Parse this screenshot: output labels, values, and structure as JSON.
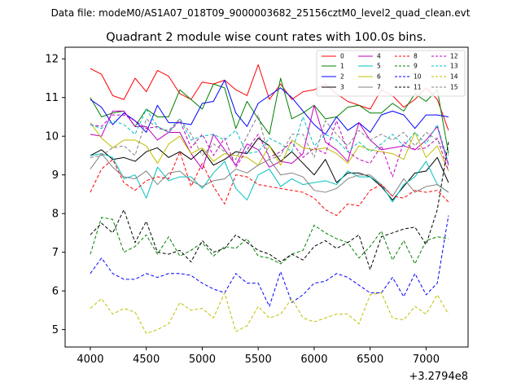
{
  "figure": {
    "suptitle": "Data file: modeM0/AS1A07_018T09_9000003682_25156cztM0_level2_quad_clean.evt",
    "x_offset_label": "+3.2794e8"
  },
  "chart_data": {
    "type": "line",
    "title": "Quadrant 2 module wise count rates with 100.0s bins.",
    "xlabel": "",
    "ylabel": "",
    "xlim": [
      3775,
      7375
    ],
    "ylim": [
      4.55,
      12.3
    ],
    "xticks": [
      4000,
      4500,
      5000,
      5500,
      6000,
      6500,
      7000
    ],
    "xtick_labels": [
      "4000",
      "4500",
      "5000",
      "5500",
      "6000",
      "6500",
      "7000"
    ],
    "yticks": [
      5,
      6,
      7,
      8,
      9,
      10,
      11,
      12
    ],
    "ytick_labels": [
      "5",
      "6",
      "7",
      "8",
      "9",
      "10",
      "11",
      "12"
    ],
    "legend_position": "top-right",
    "x": [
      4000,
      4100,
      4200,
      4300,
      4400,
      4500,
      4600,
      4700,
      4800,
      4900,
      5000,
      5100,
      5200,
      5300,
      5400,
      5500,
      5600,
      5700,
      5800,
      5900,
      6000,
      6100,
      6200,
      6300,
      6400,
      6500,
      6600,
      6700,
      6800,
      6900,
      7000,
      7100,
      7200
    ],
    "series": [
      {
        "name": "0",
        "color": "#ff0000",
        "style": "solid",
        "values": [
          11.75,
          11.6,
          11.05,
          10.95,
          11.5,
          11.15,
          11.7,
          11.55,
          11.1,
          10.95,
          11.4,
          11.35,
          11.45,
          11.2,
          11.05,
          11.85,
          10.95,
          11.35,
          10.95,
          11.15,
          11.2,
          11.35,
          11.1,
          10.9,
          10.8,
          10.7,
          11.2,
          11.05,
          10.75,
          10.95,
          11.25,
          10.95,
          10.15
        ]
      },
      {
        "name": "1",
        "color": "#008000",
        "style": "solid",
        "values": [
          11.0,
          10.5,
          10.6,
          10.65,
          10.25,
          10.7,
          10.5,
          10.5,
          11.2,
          10.95,
          10.7,
          11.35,
          11.25,
          10.2,
          10.9,
          10.45,
          10.05,
          11.5,
          10.45,
          10.6,
          10.8,
          10.45,
          10.5,
          10.75,
          10.8,
          10.6,
          10.6,
          10.85,
          10.65,
          11.1,
          10.9,
          11.2,
          9.55
        ]
      },
      {
        "name": "2",
        "color": "#0000ff",
        "style": "solid",
        "values": [
          10.95,
          10.75,
          10.3,
          10.6,
          10.4,
          10.1,
          10.8,
          10.35,
          10.35,
          10.3,
          10.85,
          10.9,
          11.45,
          10.6,
          10.25,
          10.85,
          11.05,
          11.25,
          11.0,
          10.65,
          10.3,
          10.05,
          10.5,
          10.15,
          10.35,
          10.1,
          10.55,
          10.65,
          10.55,
          10.2,
          10.55,
          10.55,
          10.5
        ]
      },
      {
        "name": "3",
        "color": "#000000",
        "style": "solid",
        "values": [
          9.5,
          9.65,
          9.4,
          9.45,
          9.35,
          9.6,
          9.7,
          9.45,
          9.6,
          9.4,
          9.65,
          9.25,
          9.4,
          9.6,
          9.55,
          9.95,
          9.75,
          9.35,
          9.6,
          9.3,
          9.0,
          9.4,
          8.8,
          9.05,
          9.05,
          8.95,
          8.7,
          8.35,
          8.7,
          9.05,
          9.1,
          9.45,
          8.8
        ]
      },
      {
        "name": "4",
        "color": "#bf00bf",
        "style": "solid",
        "values": [
          10.05,
          10.0,
          10.65,
          10.65,
          10.25,
          10.25,
          9.9,
          10.1,
          10.1,
          9.55,
          9.15,
          10.05,
          9.65,
          9.25,
          9.8,
          9.65,
          9.2,
          9.35,
          9.3,
          9.55,
          10.8,
          9.85,
          9.65,
          9.35,
          10.35,
          9.9,
          9.65,
          9.7,
          9.75,
          9.65,
          9.9,
          10.25,
          9.25
        ]
      },
      {
        "name": "5",
        "color": "#00bfbf",
        "style": "solid",
        "values": [
          9.5,
          9.55,
          9.45,
          8.9,
          9.0,
          8.4,
          9.2,
          8.85,
          8.95,
          8.95,
          8.65,
          9.05,
          9.35,
          8.65,
          8.35,
          9.0,
          9.15,
          8.7,
          8.9,
          8.75,
          8.8,
          8.85,
          8.75,
          9.1,
          8.95,
          8.95,
          8.75,
          8.3,
          8.75,
          8.95,
          9.35,
          8.75,
          8.55
        ]
      },
      {
        "name": "6",
        "color": "#bfbf00",
        "style": "solid",
        "values": [
          10.35,
          9.95,
          9.7,
          9.9,
          9.9,
          9.75,
          9.3,
          9.8,
          10.0,
          9.55,
          9.7,
          9.35,
          9.55,
          9.5,
          9.45,
          9.25,
          9.75,
          9.25,
          9.9,
          9.7,
          9.65,
          9.7,
          9.55,
          9.3,
          9.75,
          9.65,
          9.6,
          9.55,
          9.4,
          10.1,
          9.45,
          9.75,
          9.1
        ]
      },
      {
        "name": "7",
        "color": "#808080",
        "style": "solid",
        "values": [
          9.15,
          9.55,
          9.2,
          8.95,
          8.9,
          9.1,
          8.75,
          9.05,
          9.1,
          8.85,
          8.7,
          8.85,
          8.9,
          9.15,
          9.05,
          9.25,
          9.4,
          9.0,
          9.05,
          8.95,
          8.6,
          8.55,
          8.65,
          8.9,
          9.0,
          9.0,
          8.75,
          8.45,
          8.9,
          8.55,
          8.7,
          8.75,
          8.55
        ]
      },
      {
        "name": "8",
        "color": "#ff0000",
        "style": "dashed",
        "values": [
          8.55,
          9.15,
          9.4,
          8.8,
          8.6,
          8.85,
          8.95,
          8.9,
          9.6,
          8.7,
          9.3,
          8.7,
          8.25,
          9.0,
          8.95,
          8.75,
          8.7,
          8.65,
          8.6,
          8.55,
          8.4,
          8.1,
          7.95,
          8.25,
          8.2,
          8.6,
          8.75,
          8.45,
          8.4,
          8.6,
          8.55,
          8.6,
          8.3
        ]
      },
      {
        "name": "9",
        "color": "#008000",
        "style": "dashed",
        "values": [
          6.95,
          7.9,
          7.85,
          7.0,
          7.15,
          7.45,
          6.95,
          7.4,
          6.9,
          7.05,
          7.25,
          6.9,
          7.15,
          7.1,
          7.35,
          6.9,
          6.85,
          6.7,
          6.95,
          7.05,
          7.7,
          7.5,
          7.35,
          7.25,
          6.85,
          7.15,
          7.55,
          6.8,
          7.3,
          6.7,
          7.3,
          7.4,
          7.35
        ]
      },
      {
        "name": "10",
        "color": "#0000ff",
        "style": "dashed",
        "values": [
          6.45,
          6.85,
          6.45,
          6.3,
          6.3,
          6.45,
          6.35,
          6.45,
          6.45,
          6.4,
          6.2,
          6.05,
          5.95,
          6.45,
          6.2,
          6.2,
          5.6,
          6.5,
          5.7,
          5.9,
          6.2,
          6.25,
          6.45,
          6.35,
          6.15,
          5.95,
          5.95,
          6.35,
          5.85,
          6.45,
          5.9,
          6.2,
          7.95
        ]
      },
      {
        "name": "11",
        "color": "#000000",
        "style": "dashed",
        "values": [
          7.45,
          7.75,
          7.5,
          8.1,
          7.25,
          7.8,
          7.0,
          6.95,
          7.05,
          6.75,
          7.3,
          7.0,
          7.1,
          7.45,
          7.25,
          7.05,
          6.95,
          6.75,
          6.95,
          6.8,
          7.15,
          7.3,
          7.1,
          7.25,
          7.45,
          6.55,
          7.4,
          7.5,
          7.6,
          7.65,
          7.2,
          8.1,
          9.85
        ]
      },
      {
        "name": "12",
        "color": "#bf00bf",
        "style": "dashed",
        "values": [
          10.3,
          10.25,
          10.55,
          10.55,
          10.4,
          10.2,
          10.25,
          10.1,
          10.4,
          9.7,
          10.05,
          9.5,
          9.95,
          9.2,
          9.65,
          10.05,
          9.45,
          9.6,
          9.85,
          9.45,
          9.7,
          9.55,
          10.4,
          9.6,
          9.4,
          9.3,
          9.75,
          8.95,
          9.85,
          9.65,
          9.7,
          9.95,
          9.1
        ]
      },
      {
        "name": "13",
        "color": "#00bfbf",
        "style": "dashed",
        "values": [
          10.3,
          10.2,
          10.4,
          10.3,
          10.05,
          10.7,
          10.25,
          10.1,
          10.45,
          9.9,
          10.0,
          10.05,
          9.9,
          10.15,
          9.55,
          9.6,
          9.95,
          9.8,
          9.6,
          10.5,
          9.75,
          10.05,
          9.9,
          9.6,
          9.85,
          9.6,
          9.8,
          10.05,
          9.75,
          10.1,
          9.8,
          10.3,
          9.3
        ]
      },
      {
        "name": "14",
        "color": "#bfbf00",
        "style": "dashed",
        "values": [
          5.55,
          5.8,
          5.4,
          5.55,
          5.45,
          4.9,
          5.0,
          5.15,
          5.7,
          5.5,
          5.55,
          5.3,
          5.95,
          4.95,
          5.1,
          5.6,
          5.3,
          5.4,
          5.8,
          5.3,
          5.2,
          5.3,
          5.4,
          5.4,
          5.15,
          5.9,
          5.95,
          5.3,
          5.25,
          5.6,
          5.4,
          5.9,
          5.4
        ]
      },
      {
        "name": "15",
        "color": "#808080",
        "style": "dashed",
        "values": [
          9.45,
          9.5,
          9.7,
          9.75,
          9.5,
          10.45,
          10.2,
          10.15,
          10.45,
          10.05,
          9.5,
          9.8,
          9.6,
          9.4,
          10.0,
          10.55,
          9.4,
          9.5,
          10.05,
          10.05,
          9.45,
          10.4,
          10.05,
          9.75,
          10.15,
          9.9,
          10.05,
          9.9,
          10.1,
          9.75,
          10.1,
          9.9,
          9.5
        ]
      }
    ]
  }
}
